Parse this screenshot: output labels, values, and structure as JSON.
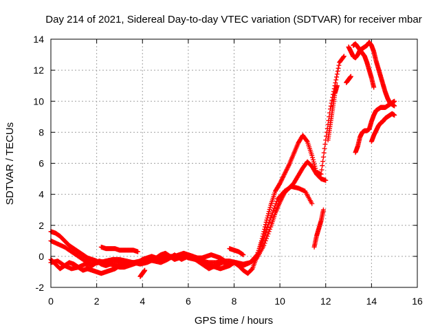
{
  "chart_data": {
    "type": "scatter",
    "title": "Day 214 of 2021, Sidereal Day-to-day VTEC variation (SDTVAR) for receiver mbar",
    "xlabel": "GPS time / hours",
    "ylabel": "SDTVAR / TECUs",
    "xlim": [
      0,
      16
    ],
    "ylim": [
      -2,
      14
    ],
    "xticks": [
      0,
      2,
      4,
      6,
      8,
      10,
      12,
      14,
      16
    ],
    "yticks": [
      -2,
      0,
      2,
      4,
      6,
      8,
      10,
      12,
      14
    ],
    "grid": true,
    "marker": "+",
    "color": "#ff0000",
    "series": [
      {
        "x": [
          0.0,
          0.3,
          0.6,
          0.9,
          1.2,
          1.5,
          1.8,
          2.1,
          2.4,
          2.7,
          3.0,
          3.3,
          3.6,
          3.9,
          4.2,
          4.5,
          4.8,
          5.1,
          5.4,
          5.7,
          6.0,
          6.3,
          6.6,
          6.9,
          7.2,
          7.5,
          7.8,
          8.1,
          8.4,
          8.7,
          9.0,
          9.3,
          9.6,
          9.8,
          10.0,
          10.2,
          10.4,
          10.6,
          10.8,
          11.0,
          11.2,
          11.4,
          11.6,
          11.8,
          12.0
        ],
        "values": [
          -0.4,
          -0.3,
          -0.6,
          -0.8,
          -0.7,
          -0.5,
          -0.6,
          -0.3,
          -0.4,
          -0.3,
          -0.4,
          -0.4,
          -0.4,
          -0.3,
          -0.2,
          -0.3,
          -0.4,
          -0.2,
          0.1,
          -0.2,
          0.0,
          -0.2,
          -0.5,
          -0.8,
          -0.6,
          -0.4,
          -0.5,
          -0.4,
          -0.6,
          -0.4,
          -0.1,
          0.7,
          1.9,
          2.8,
          3.5,
          4.1,
          4.4,
          4.7,
          5.2,
          5.7,
          6.1,
          5.8,
          5.3,
          5.0,
          4.9
        ]
      },
      {
        "x": [
          0.0,
          0.2,
          0.4,
          0.6,
          0.8,
          1.0,
          1.2,
          1.4,
          1.6,
          1.8,
          2.0,
          2.2,
          2.4,
          2.6,
          2.8,
          3.0,
          3.2,
          3.4,
          3.6,
          3.8,
          4.0,
          4.2,
          4.4,
          4.6,
          4.8,
          5.0,
          5.2,
          5.4,
          5.6,
          5.8,
          6.0,
          6.2,
          6.4,
          6.6,
          6.8,
          7.0,
          7.2,
          7.4,
          7.6,
          7.8,
          8.0,
          8.2,
          8.4,
          8.6,
          8.8,
          9.0,
          9.2,
          9.4,
          9.6,
          9.8,
          10.0,
          10.2,
          10.4,
          10.6,
          10.8,
          11.0,
          11.2,
          11.4,
          11.6,
          11.8,
          12.0,
          12.2,
          12.4,
          12.6,
          12.8
        ],
        "values": [
          1.6,
          1.5,
          1.3,
          1.0,
          0.7,
          0.5,
          0.3,
          0.1,
          -0.1,
          -0.2,
          -0.3,
          -0.5,
          -0.6,
          -0.5,
          -0.6,
          -0.7,
          -0.7,
          -0.6,
          -0.5,
          -0.4,
          -0.2,
          -0.1,
          0.0,
          -0.1,
          0.1,
          0.2,
          0.0,
          -0.2,
          -0.1,
          0.0,
          0.1,
          0.0,
          -0.2,
          -0.3,
          -0.5,
          -0.6,
          -0.7,
          -0.8,
          -0.7,
          -0.6,
          -0.4,
          -0.6,
          -0.9,
          -1.1,
          -0.8,
          0.0,
          1.0,
          2.2,
          3.3,
          4.2,
          4.7,
          5.3,
          5.9,
          6.6,
          7.3,
          7.8,
          7.4,
          6.5,
          5.4,
          5.3,
          7.5,
          9.5,
          11.0,
          12.5,
          12.9
        ]
      },
      {
        "x": [
          0.0,
          0.3,
          0.6,
          0.9,
          1.2,
          1.5,
          1.8,
          2.1,
          2.4,
          2.7,
          3.0,
          3.3,
          3.6,
          3.9,
          4.2,
          4.5,
          4.8,
          5.1,
          5.4,
          5.7,
          6.0,
          6.3,
          6.6,
          6.9,
          7.2,
          7.5,
          7.8,
          8.1,
          8.4,
          8.7,
          9.0,
          9.3,
          9.6,
          9.9,
          10.2,
          10.5,
          10.8,
          11.1,
          11.4
        ],
        "values": [
          1.0,
          0.8,
          0.6,
          0.3,
          0.0,
          -0.3,
          -0.5,
          -0.4,
          -0.3,
          -0.2,
          -0.2,
          -0.3,
          -0.4,
          -0.5,
          -0.4,
          -0.2,
          -0.1,
          0.0,
          0.0,
          0.1,
          -0.1,
          -0.2,
          -0.3,
          -0.4,
          -0.4,
          -0.3,
          -0.3,
          -0.4,
          -0.5,
          -0.4,
          0.1,
          1.2,
          2.5,
          3.7,
          4.2,
          4.5,
          4.4,
          4.2,
          3.4
        ]
      },
      {
        "x": [
          0.0,
          0.2,
          0.4,
          0.6,
          0.8,
          1.0,
          1.2,
          1.4,
          1.6,
          1.8,
          2.0,
          2.2,
          2.4,
          2.6,
          2.8,
          3.0,
          3.2,
          3.4,
          3.6,
          3.8,
          4.0,
          4.2,
          4.4,
          4.6,
          4.8,
          5.0,
          5.2,
          5.4,
          5.6,
          5.8,
          6.0,
          6.2,
          6.4,
          6.6,
          6.8,
          7.0,
          7.2,
          7.4,
          7.6
        ],
        "values": [
          -0.2,
          -0.5,
          -0.8,
          -0.6,
          -0.4,
          -0.5,
          -0.7,
          -0.9,
          -0.8,
          -0.9,
          -1.0,
          -1.1,
          -1.0,
          -0.9,
          -0.8,
          -0.6,
          -0.5,
          -0.4,
          -0.4,
          -0.4,
          -0.3,
          -0.3,
          -0.2,
          -0.1,
          -0.2,
          -0.2,
          -0.1,
          0.0,
          0.1,
          0.2,
          0.1,
          0.0,
          -0.1,
          -0.1,
          0.0,
          0.1,
          0.0,
          -0.1,
          -0.3
        ]
      },
      {
        "x": [
          2.2,
          2.4,
          2.6,
          2.8,
          3.0,
          3.2,
          3.4,
          3.6,
          3.8
        ],
        "values": [
          0.6,
          0.5,
          0.5,
          0.5,
          0.4,
          0.4,
          0.4,
          0.4,
          0.3
        ]
      },
      {
        "x": [
          3.9,
          4.0,
          4.1
        ],
        "values": [
          -1.3,
          -1.1,
          -0.9
        ]
      },
      {
        "x": [
          7.8,
          8.0,
          8.2,
          8.4
        ],
        "values": [
          0.5,
          0.4,
          0.3,
          0.1
        ]
      },
      {
        "x": [
          11.5,
          11.6,
          11.7,
          11.8,
          11.9
        ],
        "values": [
          0.6,
          1.3,
          1.8,
          2.3,
          3.0
        ]
      },
      {
        "x": [
          12.1,
          12.2,
          12.3,
          12.4,
          12.5
        ],
        "values": [
          7.5,
          8.5,
          9.5,
          10.5,
          11.0
        ]
      },
      {
        "x": [
          12.9,
          13.0,
          13.1
        ],
        "values": [
          11.2,
          11.4,
          11.6
        ]
      },
      {
        "x": [
          13.0,
          13.1,
          13.2,
          13.3,
          13.4,
          13.5,
          13.6,
          13.7,
          13.8,
          13.9,
          14.0,
          14.1,
          14.2,
          14.3,
          14.4,
          14.5,
          14.6,
          14.7,
          14.8,
          14.9,
          15.0
        ],
        "values": [
          13.5,
          13.2,
          12.9,
          12.8,
          13.0,
          13.3,
          13.4,
          13.5,
          13.6,
          13.8,
          13.6,
          13.2,
          12.6,
          12.1,
          11.6,
          11.1,
          10.6,
          10.2,
          9.9,
          9.8,
          9.7
        ]
      },
      {
        "x": [
          13.2,
          13.3,
          13.4,
          13.5,
          13.6,
          13.7,
          13.8,
          13.9,
          14.0,
          14.1
        ],
        "values": [
          13.6,
          13.7,
          13.5,
          13.3,
          13.1,
          12.9,
          12.5,
          12.0,
          11.5,
          10.9
        ]
      },
      {
        "x": [
          13.3,
          13.4,
          13.5,
          13.6,
          13.7,
          13.8,
          13.9,
          14.0,
          14.1,
          14.2,
          14.3,
          14.4,
          14.5,
          14.6,
          14.7,
          14.8,
          14.9,
          15.0
        ],
        "values": [
          6.7,
          7.1,
          7.7,
          8.0,
          8.1,
          8.1,
          8.2,
          8.7,
          9.1,
          9.4,
          9.5,
          9.6,
          9.6,
          9.6,
          9.7,
          9.8,
          9.9,
          10.0
        ]
      },
      {
        "x": [
          14.0,
          14.1,
          14.2,
          14.3,
          14.4,
          14.5,
          14.6,
          14.7,
          14.8,
          14.9,
          15.0
        ],
        "values": [
          7.4,
          7.8,
          8.1,
          8.4,
          8.6,
          8.7,
          8.9,
          9.0,
          9.1,
          9.2,
          9.1
        ]
      }
    ]
  }
}
